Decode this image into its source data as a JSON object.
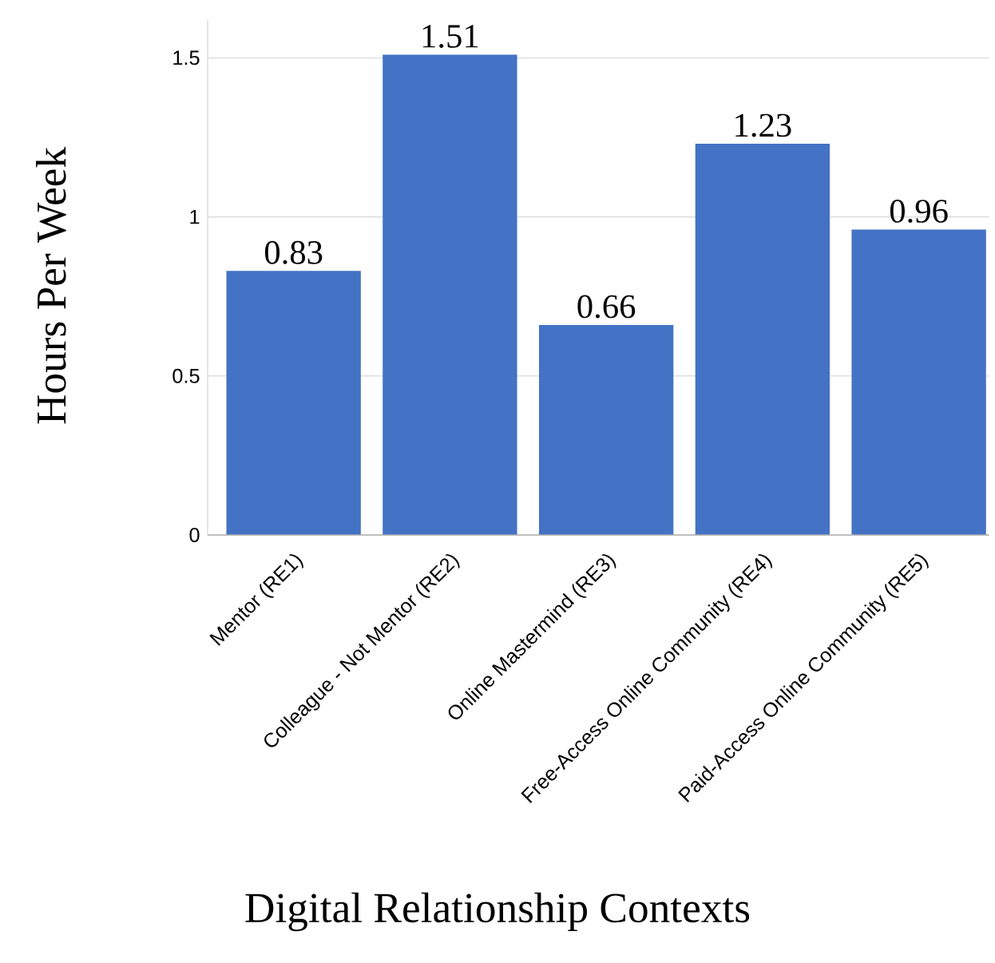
{
  "chart_data": {
    "type": "bar",
    "xlabel": "Digital Relationship Contexts",
    "ylabel": "Hours Per Week",
    "categories": [
      "Mentor (RE1)",
      "Colleague - Not Mentor (RE2)",
      "Online Mastermind (RE3)",
      "Free-Access Online Community (RE4)",
      "Paid-Access Online Community (RE5)"
    ],
    "values": [
      0.83,
      1.51,
      0.66,
      1.23,
      0.96
    ],
    "color": "#4472c4",
    "ylim": [
      0,
      1.62
    ],
    "yticks": [
      0,
      0.5,
      1,
      1.5
    ],
    "grid": "y",
    "data_labels": true
  }
}
